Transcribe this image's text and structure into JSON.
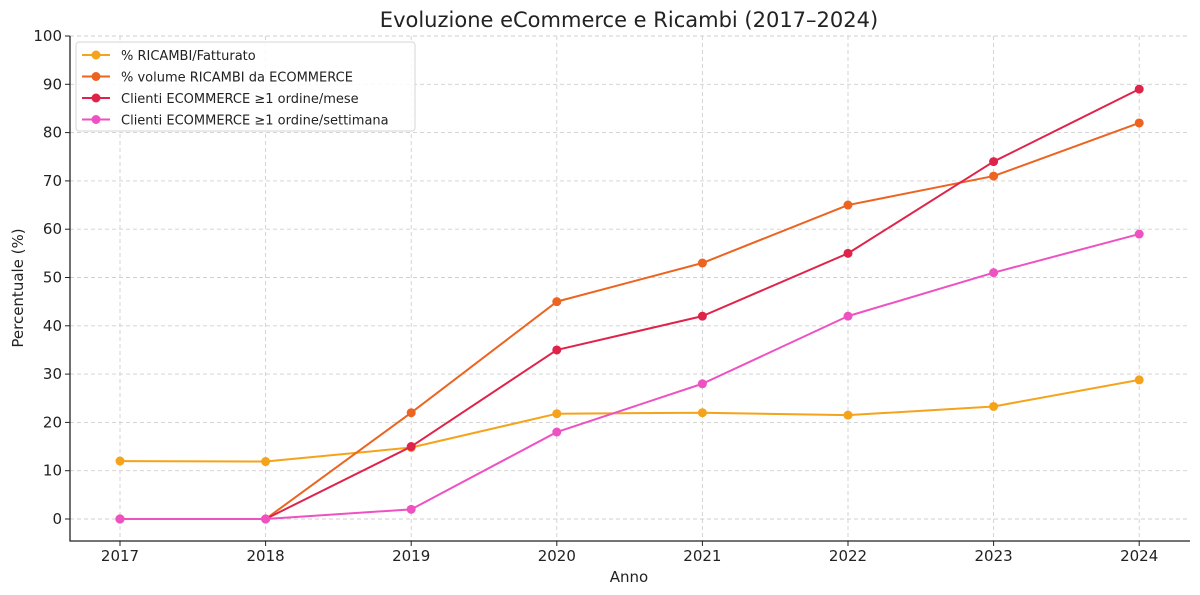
{
  "chart_data": {
    "type": "line",
    "title": "Evoluzione eCommerce e Ricambi (2017–2024)",
    "xlabel": "Anno",
    "ylabel": "Percentuale (%)",
    "x": [
      "2017",
      "2018",
      "2019",
      "2020",
      "2021",
      "2022",
      "2023",
      "2024"
    ],
    "ylim": [
      -5,
      100
    ],
    "yticks": [
      0,
      10,
      20,
      30,
      40,
      50,
      60,
      70,
      80,
      90,
      100
    ],
    "grid": true,
    "legend_position": "upper left",
    "series": [
      {
        "name": "% RICAMBI/Fatturato",
        "color": "#f5a31a",
        "values": [
          12.0,
          11.9,
          14.8,
          21.8,
          22.0,
          21.5,
          23.3,
          28.8
        ]
      },
      {
        "name": "% volume RICAMBI da ECOMMERCE",
        "color": "#ec6420",
        "values": [
          0,
          0,
          22,
          45,
          53,
          65,
          71,
          82
        ]
      },
      {
        "name": "Clienti ECOMMERCE ≥1 ordine/mese",
        "color": "#e0234a",
        "values": [
          0,
          0,
          15,
          35,
          42,
          55,
          74,
          89
        ]
      },
      {
        "name": "Clienti ECOMMERCE ≥1 ordine/settimana",
        "color": "#ee52c2",
        "values": [
          0,
          0,
          2,
          18,
          28,
          42,
          51,
          59
        ]
      }
    ]
  }
}
